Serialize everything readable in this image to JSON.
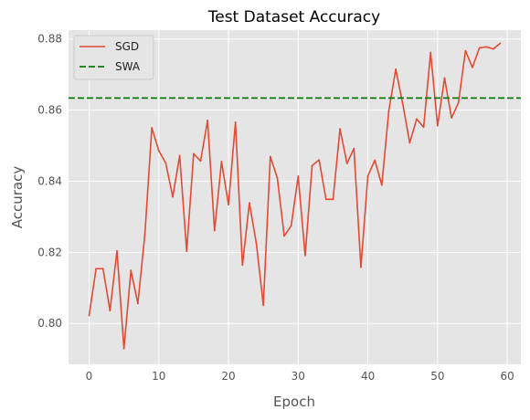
{
  "chart_data": {
    "type": "line",
    "title": "Test Dataset Accuracy",
    "xlabel": "Epoch",
    "ylabel": "Accuracy",
    "xlim": [
      -2.95,
      61.95
    ],
    "ylim": [
      0.7885,
      0.8825
    ],
    "xticks": [
      0,
      10,
      20,
      30,
      40,
      50,
      60
    ],
    "yticks": [
      0.8,
      0.82,
      0.84,
      0.86,
      0.88
    ],
    "grid": true,
    "legend_position": "top-left",
    "series": [
      {
        "name": "SGD",
        "style": "solid",
        "color": "#E24A33",
        "x": [
          0,
          1,
          2,
          3,
          4,
          5,
          6,
          7,
          8,
          9,
          10,
          11,
          12,
          13,
          14,
          15,
          16,
          17,
          18,
          19,
          20,
          21,
          22,
          23,
          24,
          25,
          26,
          27,
          28,
          29,
          30,
          31,
          32,
          33,
          34,
          35,
          36,
          37,
          38,
          39,
          40,
          41,
          42,
          43,
          44,
          45,
          46,
          47,
          48,
          49,
          50,
          51,
          52,
          53,
          54,
          55,
          56,
          57,
          58,
          59
        ],
        "values": [
          0.8022,
          0.8154,
          0.8154,
          0.8036,
          0.8204,
          0.7929,
          0.8149,
          0.8056,
          0.825,
          0.855,
          0.8486,
          0.8451,
          0.8356,
          0.8472,
          0.8203,
          0.8477,
          0.8457,
          0.8571,
          0.8261,
          0.8455,
          0.8334,
          0.8566,
          0.8164,
          0.8339,
          0.8225,
          0.8051,
          0.8469,
          0.841,
          0.8246,
          0.8275,
          0.8414,
          0.8191,
          0.8444,
          0.846,
          0.8349,
          0.8349,
          0.8547,
          0.845,
          0.8492,
          0.8158,
          0.8415,
          0.8459,
          0.8389,
          0.8598,
          0.8715,
          0.8618,
          0.8508,
          0.8575,
          0.8552,
          0.8762,
          0.8556,
          0.869,
          0.8578,
          0.8621,
          0.8767,
          0.872,
          0.8775,
          0.8778,
          0.8772,
          0.8788
        ]
      },
      {
        "name": "SWA",
        "style": "dashed",
        "color": "#008000",
        "constant": 0.8634
      }
    ]
  }
}
